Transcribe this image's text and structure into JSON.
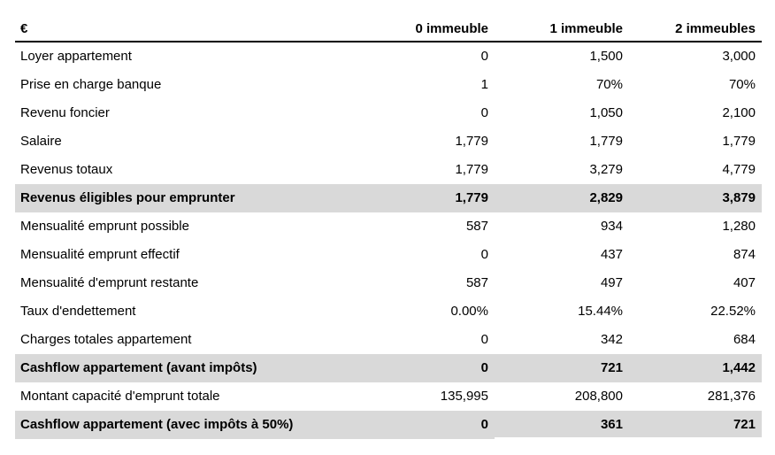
{
  "table": {
    "headers": {
      "label": "€",
      "col0": "0 immeuble",
      "col1": "1 immeuble",
      "col2": "2 immeubles"
    },
    "rows": [
      {
        "label": "Loyer appartement",
        "v0": "0",
        "v1": "1,500",
        "v2": "3,000",
        "bold": false
      },
      {
        "label": "Prise en charge banque",
        "v0": "1",
        "v1": "70%",
        "v2": "70%",
        "bold": false
      },
      {
        "label": "Revenu foncier",
        "v0": "0",
        "v1": "1,050",
        "v2": "2,100",
        "bold": false
      },
      {
        "label": "Salaire",
        "v0": "1,779",
        "v1": "1,779",
        "v2": "1,779",
        "bold": false
      },
      {
        "label": "Revenus totaux",
        "v0": "1,779",
        "v1": "3,279",
        "v2": "4,779",
        "bold": false
      },
      {
        "label": "Revenus éligibles pour emprunter",
        "v0": "1,779",
        "v1": "2,829",
        "v2": "3,879",
        "bold": true
      },
      {
        "label": "Mensualité emprunt possible",
        "v0": "587",
        "v1": "934",
        "v2": "1,280",
        "bold": false
      },
      {
        "label": "Mensualité emprunt effectif",
        "v0": "0",
        "v1": "437",
        "v2": "874",
        "bold": false
      },
      {
        "label": "Mensualité d'emprunt restante",
        "v0": "587",
        "v1": "497",
        "v2": "407",
        "bold": false
      },
      {
        "label": "Taux d'endettement",
        "v0": "0.00%",
        "v1": "15.44%",
        "v2": "22.52%",
        "bold": false
      },
      {
        "label": "Charges totales appartement",
        "v0": "0",
        "v1": "342",
        "v2": "684",
        "bold": false
      },
      {
        "label": "Cashflow appartement (avant impôts)",
        "v0": "0",
        "v1": "721",
        "v2": "1,442",
        "bold": true
      },
      {
        "label": "Montant capacité d'emprunt totale",
        "v0": "135,995",
        "v1": "208,800",
        "v2": "281,376",
        "bold": false
      },
      {
        "label": "Cashflow appartement (avec impôts à 50%)",
        "v0": "0",
        "v1": "361",
        "v2": "721",
        "bold": true
      }
    ]
  },
  "colors": {
    "highlight_row_bg": "#d9d9d9",
    "text": "#000000",
    "header_rule": "#000000"
  }
}
